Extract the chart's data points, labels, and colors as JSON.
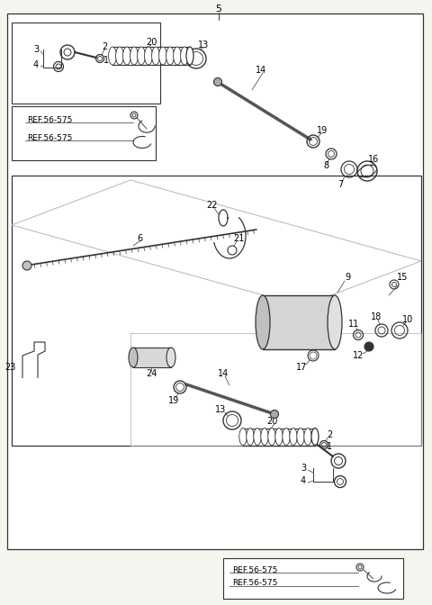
{
  "bg_color": "#f5f5f0",
  "line_color": "#333333",
  "text_color": "#000000",
  "ref_text": "REF.56-575",
  "figsize": [
    4.8,
    6.72
  ],
  "dpi": 100,
  "title": "5"
}
